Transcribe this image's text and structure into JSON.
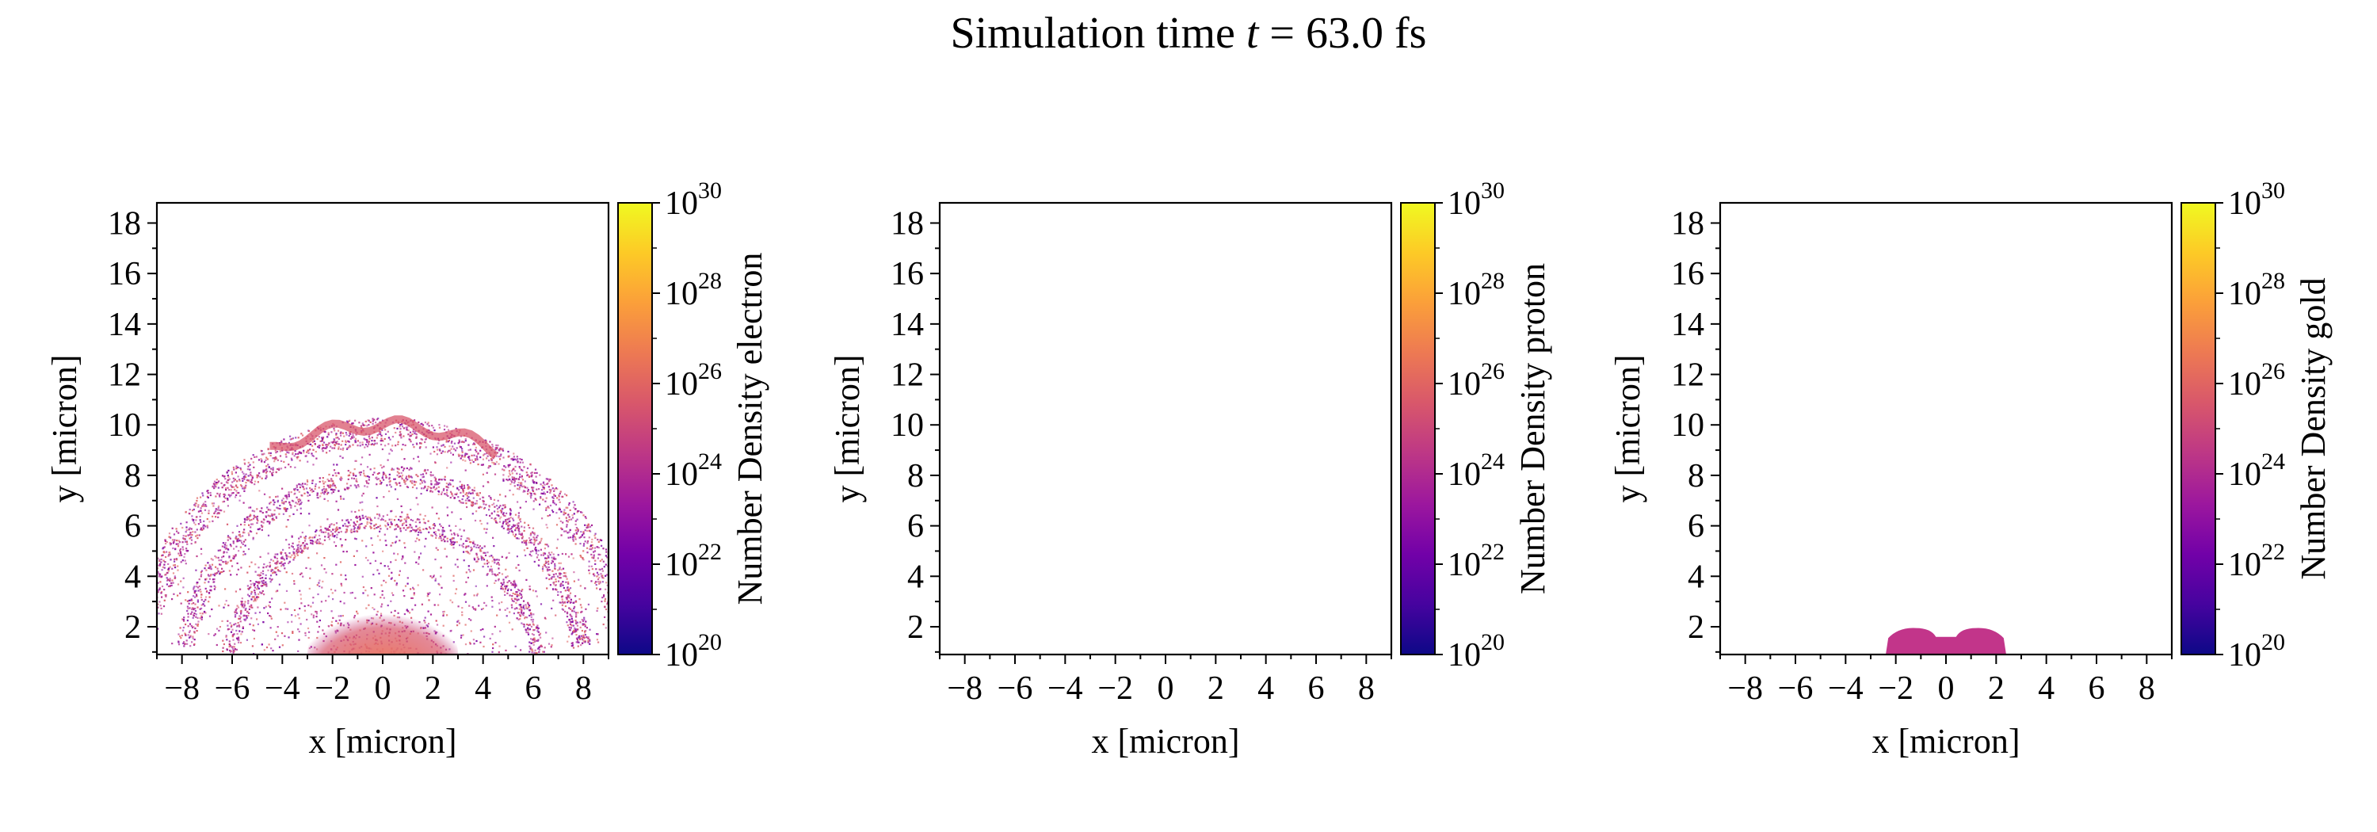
{
  "figure": {
    "title_prefix": "Simulation time ",
    "title_var": "t",
    "title_suffix": " = 63.0 fs"
  },
  "chart_data": [
    {
      "type": "heatmap",
      "title": "",
      "xlabel": "x [micron]",
      "ylabel": "y [micron]",
      "xlim": [
        -9,
        9
      ],
      "ylim": [
        0.9,
        18.8
      ],
      "xticks": [
        -8,
        -6,
        -4,
        -2,
        0,
        2,
        4,
        6,
        8
      ],
      "yticks": [
        2,
        4,
        6,
        8,
        10,
        12,
        14,
        16,
        18
      ],
      "colorbar": {
        "label": "Number Density electron",
        "scale": "log",
        "range": [
          1e+20,
          1e+30
        ],
        "ticks": [
          "20",
          "22",
          "24",
          "26",
          "28",
          "30"
        ],
        "colormap": "plasma"
      },
      "features": {
        "description_shape": "dome",
        "dome_radius": 10.3,
        "dome_center": [
          0,
          0
        ],
        "core_center": [
          0,
          1.2
        ],
        "core_radius": 3.0
      }
    },
    {
      "type": "heatmap",
      "title": "",
      "xlabel": "x [micron]",
      "ylabel": "y [micron]",
      "xlim": [
        -9,
        9
      ],
      "ylim": [
        0.9,
        18.8
      ],
      "xticks": [
        -8,
        -6,
        -4,
        -2,
        0,
        2,
        4,
        6,
        8
      ],
      "yticks": [
        2,
        4,
        6,
        8,
        10,
        12,
        14,
        16,
        18
      ],
      "colorbar": {
        "label": "Number Density proton",
        "scale": "log",
        "range": [
          1e+20,
          1e+30
        ],
        "ticks": [
          "20",
          "22",
          "24",
          "26",
          "28",
          "30"
        ],
        "colormap": "plasma"
      },
      "features": null
    },
    {
      "type": "heatmap",
      "title": "",
      "xlabel": "x [micron]",
      "ylabel": "y [micron]",
      "xlim": [
        -9,
        9
      ],
      "ylim": [
        0.9,
        18.8
      ],
      "xticks": [
        -8,
        -6,
        -4,
        -2,
        0,
        2,
        4,
        6,
        8
      ],
      "yticks": [
        2,
        4,
        6,
        8,
        10,
        12,
        14,
        16,
        18
      ],
      "colorbar": {
        "label": "Number Density gold",
        "scale": "log",
        "range": [
          1e+20,
          1e+30
        ],
        "ticks": [
          "20",
          "22",
          "24",
          "26",
          "28",
          "30"
        ],
        "colormap": "plasma"
      },
      "features": {
        "lobes": [
          {
            "x": -1.2,
            "y_top": 1.95
          },
          {
            "x": 1.2,
            "y_top": 1.95
          }
        ],
        "x_extent": [
          -2.4,
          2.4
        ],
        "notch_y": 1.6
      }
    }
  ],
  "colors": {
    "plasma": [
      "#0d0887",
      "#46039f",
      "#7201a8",
      "#9c179e",
      "#bd3786",
      "#d8576b",
      "#ed7953",
      "#fb9f3a",
      "#fdca26",
      "#f0f921"
    ],
    "electron_tint": "#c03a8a",
    "gold_tint": "#c2358a"
  }
}
